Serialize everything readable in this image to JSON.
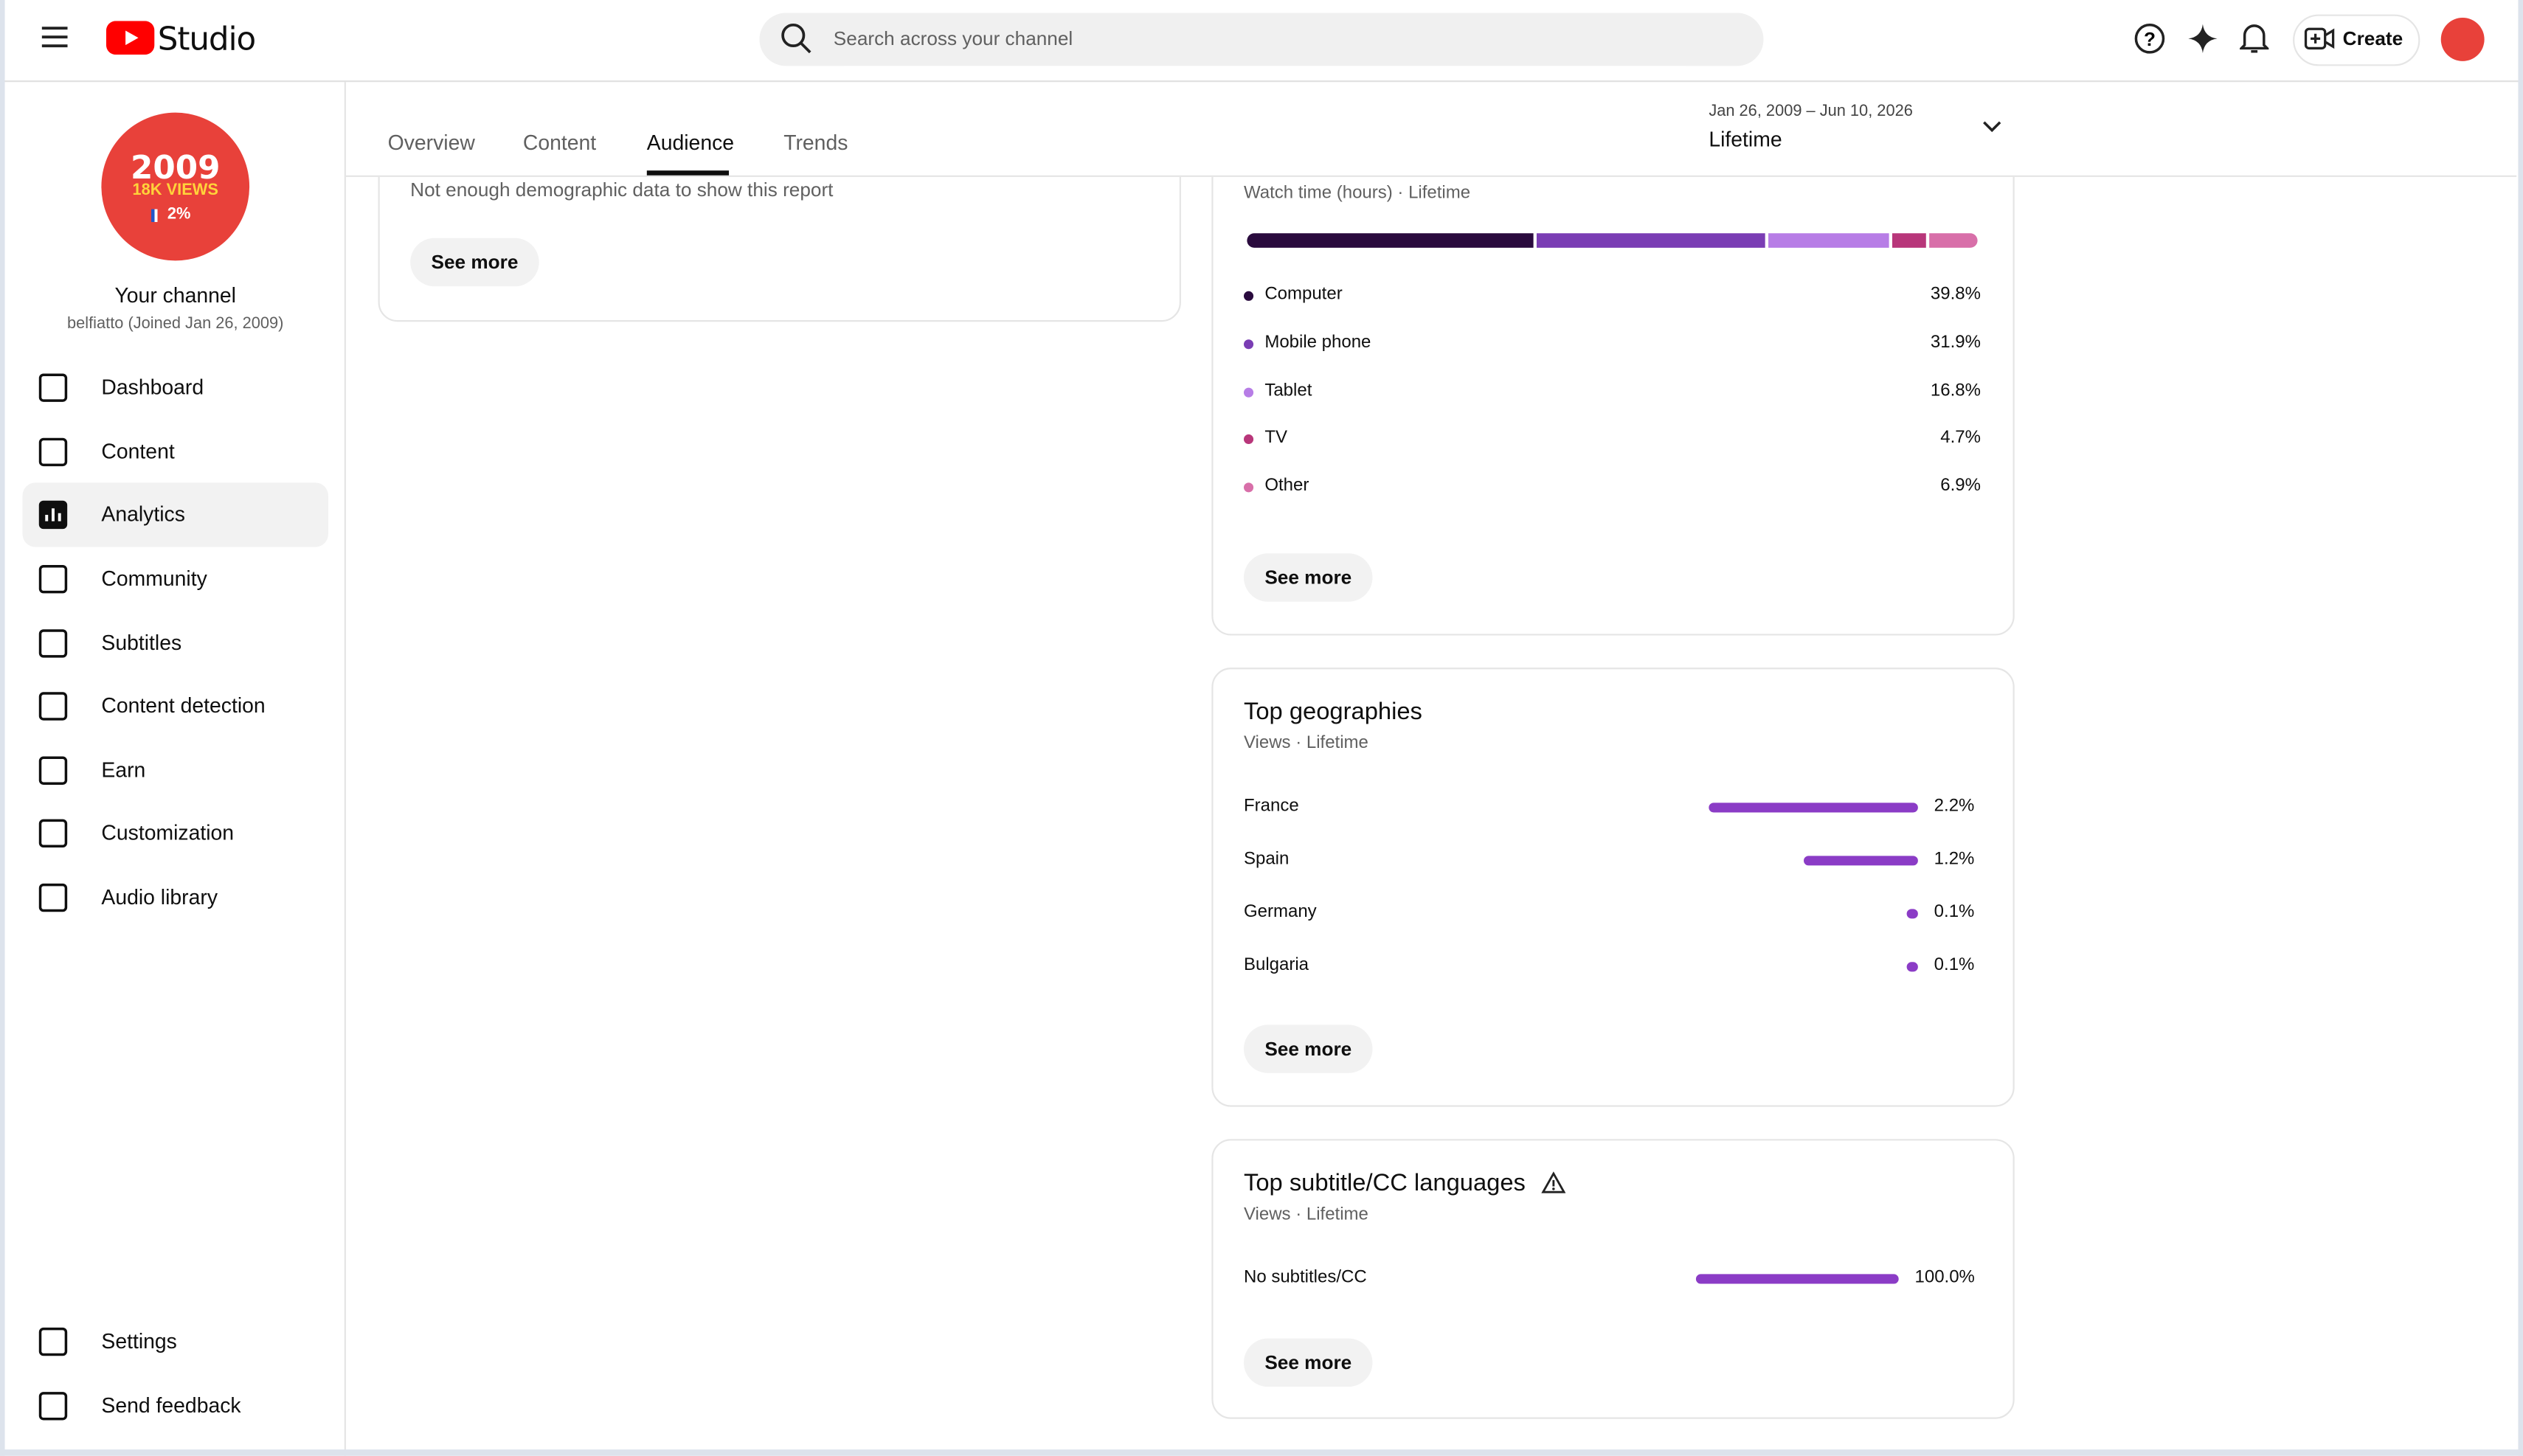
{
  "topbar": {
    "logo_text": "Studio",
    "search_placeholder": "Search across your channel",
    "create": "Create"
  },
  "sidebar": {
    "avatar": {
      "year": "2009",
      "views": "18K VIEWS",
      "share": "2%"
    },
    "channel_title": "Your channel",
    "channel_sub": "belfiatto (Joined Jan 26, 2009)",
    "nav": [
      "Dashboard",
      "Content",
      "Analytics",
      "Community",
      "Subtitles",
      "Content detection",
      "Earn",
      "Customization",
      "Audio library"
    ],
    "selected": "Analytics",
    "footer": [
      "Settings",
      "Send feedback"
    ]
  },
  "tabs": [
    "Overview",
    "Content",
    "Audience",
    "Trends"
  ],
  "active_tab": "Audience",
  "date_range": {
    "dates": "Jan 26, 2009 – Jun 10, 2026",
    "period": "Lifetime"
  },
  "demographics": {
    "message": "Not enough demographic data to show this report",
    "button": "See more"
  },
  "devices": {
    "subtitle": "Watch time (hours) · Lifetime",
    "items": [
      {
        "name": "Computer",
        "value": 39.8,
        "label": "39.8%",
        "color": "#2a0b3e"
      },
      {
        "name": "Mobile phone",
        "value": 31.9,
        "label": "31.9%",
        "color": "#7a3db4"
      },
      {
        "name": "Tablet",
        "value": 16.8,
        "label": "16.8%",
        "color": "#b77de6"
      },
      {
        "name": "TV",
        "value": 4.7,
        "label": "4.7%",
        "color": "#b8367a"
      },
      {
        "name": "Other",
        "value": 6.9,
        "label": "6.9%",
        "color": "#d86fa9"
      }
    ],
    "button": "See more"
  },
  "geographies": {
    "title": "Top geographies",
    "subtitle": "Views · Lifetime",
    "bar_color": "#8b3cc6",
    "items": [
      {
        "name": "France",
        "value": 2.2,
        "label": "2.2%"
      },
      {
        "name": "Spain",
        "value": 1.2,
        "label": "1.2%"
      },
      {
        "name": "Germany",
        "value": 0.1,
        "label": "0.1%"
      },
      {
        "name": "Bulgaria",
        "value": 0.1,
        "label": "0.1%"
      }
    ],
    "button": "See more"
  },
  "subtitle_languages": {
    "title": "Top subtitle/CC languages",
    "subtitle": "Views · Lifetime",
    "bar_color": "#8b3cc6",
    "items": [
      {
        "name": "No subtitles/CC",
        "value": 100.0,
        "label": "100.0%"
      }
    ],
    "button": "See more"
  }
}
